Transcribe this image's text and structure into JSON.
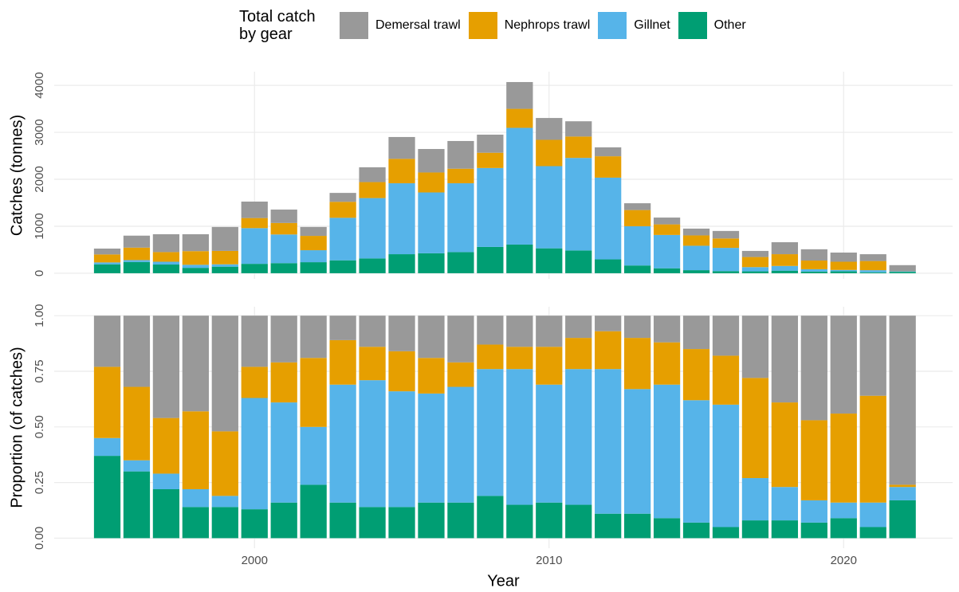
{
  "legend_title": "Total catch by gear",
  "chart_data": [
    {
      "type": "bar",
      "stacked": true,
      "ylabel": "Catches (tonnes)",
      "x": [
        1995,
        1996,
        1997,
        1998,
        1999,
        2000,
        2001,
        2002,
        2003,
        2004,
        2005,
        2006,
        2007,
        2008,
        2009,
        2010,
        2011,
        2012,
        2013,
        2014,
        2015,
        2016,
        2017,
        2018,
        2019,
        2020,
        2021,
        2022
      ],
      "series": [
        {
          "name": "Demersal trawl",
          "color": "#999999",
          "values": [
            125,
            255,
            380,
            360,
            510,
            350,
            285,
            190,
            190,
            315,
            465,
            500,
            590,
            385,
            570,
            465,
            325,
            190,
            145,
            145,
            145,
            160,
            130,
            255,
            240,
            195,
            145,
            130
          ]
        },
        {
          "name": "Nephrops trawl",
          "color": "#E69F00",
          "values": [
            170,
            265,
            205,
            290,
            285,
            215,
            245,
            305,
            340,
            340,
            520,
            425,
            310,
            325,
            405,
            560,
            455,
            455,
            345,
            225,
            220,
            200,
            215,
            250,
            185,
            175,
            195,
            2
          ]
        },
        {
          "name": "Gillnet",
          "color": "#56B4E9",
          "values": [
            40,
            40,
            60,
            65,
            50,
            760,
            610,
            255,
            905,
            1285,
            1510,
            1295,
            1465,
            1680,
            2485,
            1750,
            1970,
            1740,
            835,
            710,
            520,
            495,
            90,
            100,
            50,
            30,
            45,
            10
          ]
        },
        {
          "name": "Other",
          "color": "#009E73",
          "values": [
            190,
            240,
            185,
            115,
            140,
            200,
            215,
            235,
            275,
            315,
            405,
            425,
            450,
            560,
            610,
            530,
            485,
            295,
            165,
            105,
            65,
            45,
            40,
            55,
            35,
            40,
            20,
            30
          ]
        }
      ],
      "xlim": [
        1993.2,
        2023.7
      ],
      "xticks": [
        2000,
        2010,
        2020
      ],
      "ylim": [
        -120,
        4290
      ],
      "yticks": [
        0,
        1000,
        2000,
        3000,
        4000
      ],
      "grid": true
    },
    {
      "type": "bar",
      "stacked": true,
      "ylabel": "Proportion (of catches)",
      "xlabel": "Year",
      "x": [
        1995,
        1996,
        1997,
        1998,
        1999,
        2000,
        2001,
        2002,
        2003,
        2004,
        2005,
        2006,
        2007,
        2008,
        2009,
        2010,
        2011,
        2012,
        2013,
        2014,
        2015,
        2016,
        2017,
        2018,
        2019,
        2020,
        2021,
        2022
      ],
      "series": [
        {
          "color": "#999999",
          "values": [
            0.23,
            0.32,
            0.46,
            0.43,
            0.52,
            0.23,
            0.21,
            0.19,
            0.11,
            0.14,
            0.16,
            0.19,
            0.21,
            0.13,
            0.14,
            0.14,
            0.1,
            0.07,
            0.1,
            0.12,
            0.15,
            0.18,
            0.28,
            0.39,
            0.47,
            0.44,
            0.36,
            0.76
          ]
        },
        {
          "color": "#E69F00",
          "values": [
            0.32,
            0.33,
            0.25,
            0.35,
            0.29,
            0.14,
            0.18,
            0.31,
            0.2,
            0.15,
            0.18,
            0.16,
            0.11,
            0.11,
            0.1,
            0.17,
            0.14,
            0.17,
            0.23,
            0.19,
            0.23,
            0.22,
            0.45,
            0.38,
            0.36,
            0.4,
            0.48,
            0.01
          ]
        },
        {
          "color": "#56B4E9",
          "values": [
            0.08,
            0.05,
            0.07,
            0.08,
            0.05,
            0.5,
            0.45,
            0.26,
            0.53,
            0.57,
            0.52,
            0.49,
            0.52,
            0.57,
            0.61,
            0.53,
            0.61,
            0.65,
            0.56,
            0.6,
            0.55,
            0.55,
            0.19,
            0.15,
            0.1,
            0.07,
            0.11,
            0.06
          ]
        },
        {
          "color": "#009E73",
          "values": [
            0.37,
            0.3,
            0.22,
            0.14,
            0.14,
            0.13,
            0.16,
            0.24,
            0.16,
            0.14,
            0.14,
            0.16,
            0.16,
            0.19,
            0.15,
            0.16,
            0.15,
            0.11,
            0.11,
            0.09,
            0.07,
            0.05,
            0.08,
            0.08,
            0.07,
            0.09,
            0.05,
            0.17
          ]
        }
      ],
      "xlim": [
        1993.2,
        2023.7
      ],
      "xticks": [
        2000,
        2010,
        2020
      ],
      "ylim": [
        -0.045,
        1.04
      ],
      "yticks": [
        {
          "value": 0,
          "label": "0.00"
        },
        {
          "value": 0.25,
          "label": "0.25"
        },
        {
          "value": 0.5,
          "label": "0.50"
        },
        {
          "value": 0.75,
          "label": "0.75"
        },
        {
          "value": 1,
          "label": "1.00"
        }
      ],
      "grid": true
    }
  ]
}
